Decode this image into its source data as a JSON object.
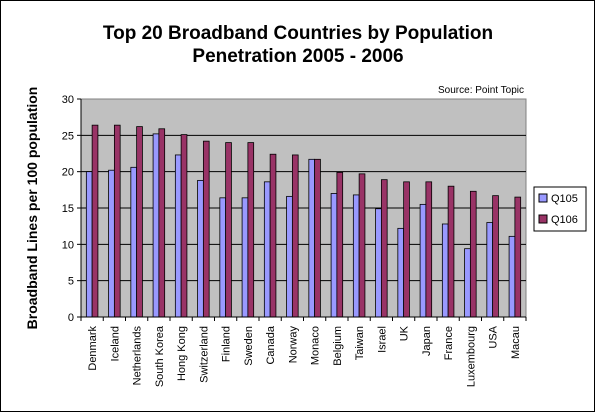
{
  "chart_data": {
    "type": "bar",
    "title": "Top 20 Broadband Countries by Population Penetration 2005 - 2006",
    "title_lines": [
      "Top 20 Broadband Countries by Population",
      "Penetration 2005 - 2006"
    ],
    "source": "Source: Point Topic",
    "ylabel": "Broadband Lines per 100 population",
    "xlabel": "",
    "ylim": [
      0,
      30
    ],
    "yticks": [
      0,
      5,
      10,
      15,
      20,
      25,
      30
    ],
    "grid": true,
    "legend_position": "right",
    "categories": [
      "Denmark",
      "Iceland",
      "Netherlands",
      "South Korea",
      "Hong Kong",
      "Switzerland",
      "Finland",
      "Sweden",
      "Canada",
      "Norway",
      "Monaco",
      "Belgium",
      "Taiwan",
      "Israel",
      "UK",
      "Japan",
      "France",
      "Luxembourg",
      "USA",
      "Macau"
    ],
    "series": [
      {
        "name": "Q105",
        "color": "#9999ff",
        "values": [
          20.0,
          20.2,
          20.6,
          25.2,
          22.3,
          18.8,
          16.4,
          16.4,
          18.6,
          16.6,
          21.7,
          17.0,
          16.8,
          14.9,
          12.2,
          15.5,
          12.8,
          9.4,
          13.0,
          11.1
        ]
      },
      {
        "name": "Q106",
        "color": "#993366",
        "values": [
          26.4,
          26.4,
          26.2,
          25.9,
          25.1,
          24.2,
          24.0,
          24.0,
          22.4,
          22.3,
          21.7,
          19.9,
          19.7,
          18.9,
          18.6,
          18.6,
          18.0,
          17.3,
          16.7,
          16.5
        ]
      }
    ],
    "plot_background": "#c0c0c0"
  }
}
